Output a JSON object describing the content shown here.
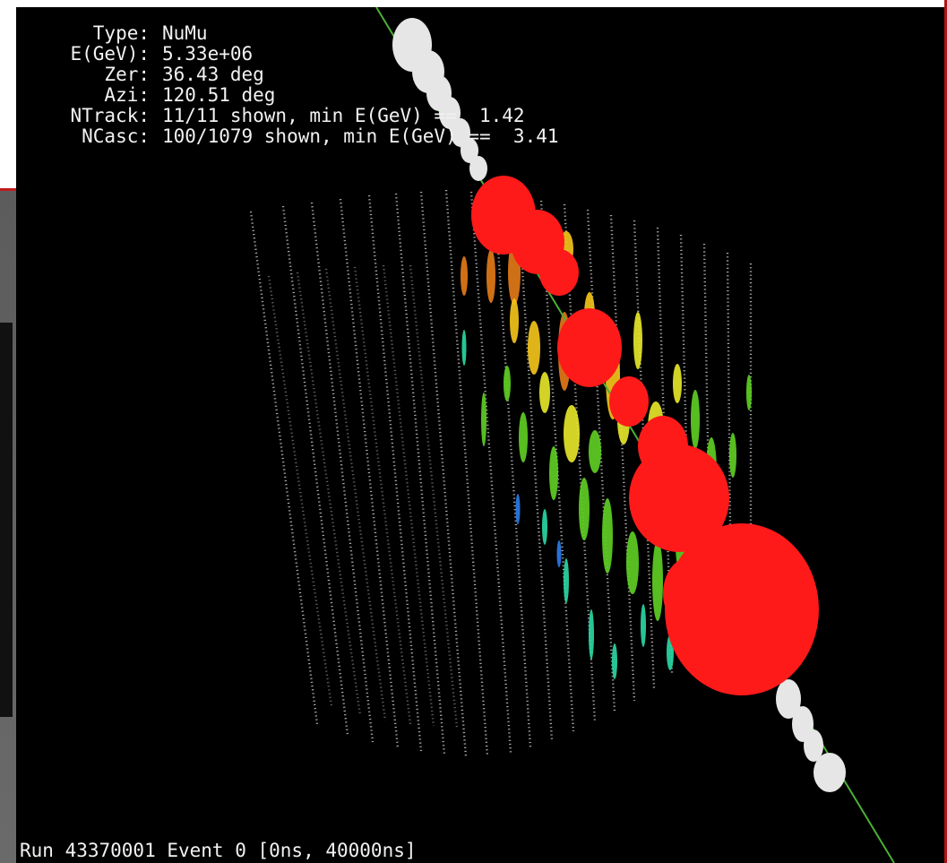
{
  "event_info": {
    "type_label": "Type:",
    "type_value": "NuMu",
    "energy_label": "E(GeV):",
    "energy_value": "5.33e+06",
    "zenith_label": "Zer:",
    "zenith_value": "36.43 deg",
    "azimuth_label": "Azi:",
    "azimuth_value": "120.51 deg",
    "ntrack_label": "NTrack:",
    "ntrack_value": "11/11 shown, min E(GeV) ==  1.42",
    "ncasc_label": "NCasc:",
    "ncasc_value": "100/1079 shown, min E(GeV) ==  3.41"
  },
  "footer": {
    "run_text": "Run 43370001 Event 0 [0ns, 40000ns]"
  },
  "colors": {
    "background": "#000000",
    "dom_grid": "#cfcfcf",
    "track": "#e6e6e6",
    "cascade": "#ff1a1a",
    "hit_scale": [
      "#ff2a1a",
      "#e07818",
      "#f0c21a",
      "#e3e32a",
      "#5ecb22",
      "#2ad4a0",
      "#2a78e6"
    ]
  }
}
